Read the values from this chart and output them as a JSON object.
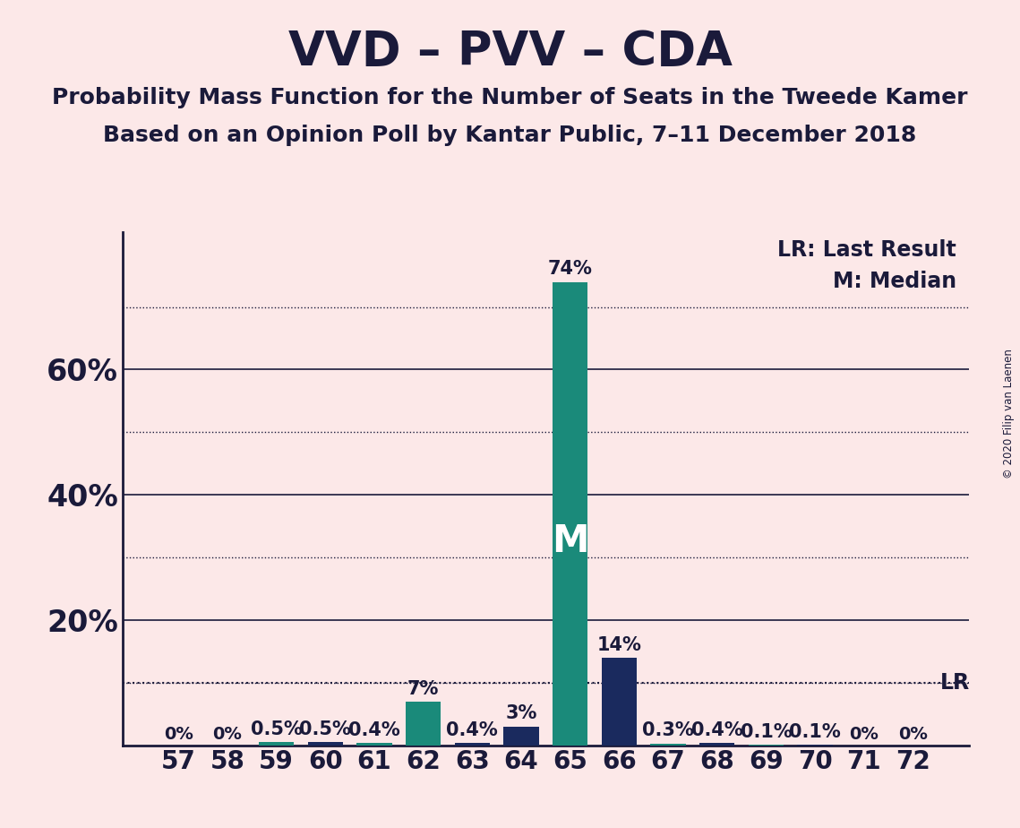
{
  "title": "VVD – PVV – CDA",
  "subtitle1": "Probability Mass Function for the Number of Seats in the Tweede Kamer",
  "subtitle2": "Based on an Opinion Poll by Kantar Public, 7–11 December 2018",
  "copyright": "© 2020 Filip van Laenen",
  "seats": [
    57,
    58,
    59,
    60,
    61,
    62,
    63,
    64,
    65,
    66,
    67,
    68,
    69,
    70,
    71,
    72
  ],
  "values": [
    0.0,
    0.0,
    0.5,
    0.5,
    0.4,
    7.0,
    0.4,
    3.0,
    74.0,
    14.0,
    0.3,
    0.4,
    0.1,
    0.1,
    0.0,
    0.0
  ],
  "bar_colors": [
    "#1a8a7a",
    "#1a2a5e",
    "#1a8a7a",
    "#1a2a5e",
    "#1a8a7a",
    "#1a8a7a",
    "#1a2a5e",
    "#1a2a5e",
    "#1a8a7a",
    "#1a2a5e",
    "#1a8a7a",
    "#1a2a5e",
    "#1a8a7a",
    "#1a2a5e",
    "#1a8a7a",
    "#1a2a5e"
  ],
  "teal_color": "#1a8a7a",
  "navy_color": "#1a2a5e",
  "median_seat": 65,
  "lr_value": 10.0,
  "background_color": "#fce8e8",
  "axis_color": "#1a1a3a",
  "grid_solid_ticks": [
    20,
    40,
    60
  ],
  "grid_dotted_ticks": [
    10,
    30,
    50,
    70
  ],
  "ylim_max": 82,
  "ytick_labels": [
    "20%",
    "40%",
    "60%"
  ],
  "ytick_values": [
    20,
    40,
    60
  ],
  "title_fontsize": 38,
  "subtitle_fontsize": 18,
  "ylabel_fontsize": 24,
  "tick_fontsize": 20,
  "bar_label_fontsize": 15,
  "legend_fontsize": 17,
  "lr_fontsize": 17
}
